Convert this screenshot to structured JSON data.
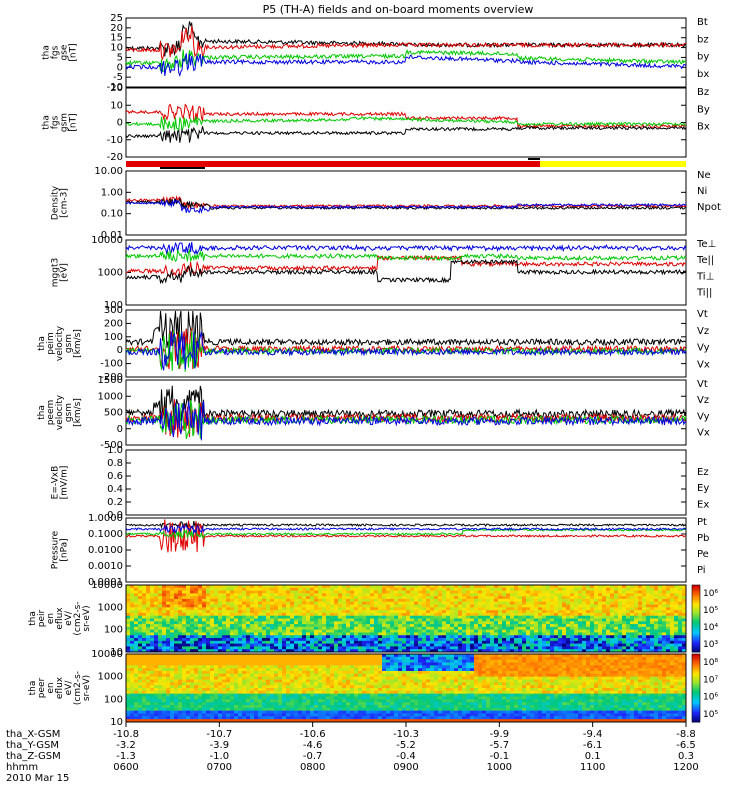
{
  "title": "P5 (TH-A) fields and on-board moments overview",
  "colors": {
    "black": "#000000",
    "red": "#e00000",
    "green": "#00c800",
    "blue": "#0000e0",
    "yellow": "#ffff00"
  },
  "chart_data": [
    {
      "type": "line",
      "panel": "fgs-gse",
      "ylabel": [
        "tha",
        "fgs",
        "gse",
        "[nT]"
      ],
      "yticks": [
        "25",
        "20",
        "15",
        "10",
        "5",
        "0",
        "-5",
        "-10"
      ],
      "ylim": [
        -10,
        25
      ],
      "series": [
        {
          "name": "Bt",
          "color": "black"
        },
        {
          "name": "bz",
          "color": "red"
        },
        {
          "name": "by",
          "color": "green"
        },
        {
          "name": "bx",
          "color": "blue"
        }
      ]
    },
    {
      "type": "line",
      "panel": "fgs-gsm",
      "ylabel": [
        "tha",
        "fgs",
        "gsm",
        "[nT]"
      ],
      "yticks": [
        "20",
        "10",
        "0",
        "-10",
        "-20"
      ],
      "ylim": [
        -25,
        20
      ],
      "series": [
        {
          "name": "Bz",
          "color": "red"
        },
        {
          "name": "By",
          "color": "green"
        },
        {
          "name": "Bx",
          "color": "black"
        }
      ]
    },
    {
      "type": "line",
      "panel": "density",
      "ylabel": [
        "Density",
        "[cm-3]"
      ],
      "yticks": [
        "10.00",
        "1.00",
        "0.10",
        "0.01"
      ],
      "ylim": [
        0.01,
        10
      ],
      "log": true,
      "series": [
        {
          "name": "Ne",
          "color": "red"
        },
        {
          "name": "Ni",
          "color": "black"
        },
        {
          "name": "Npot",
          "color": "blue"
        }
      ]
    },
    {
      "type": "line",
      "panel": "temperature",
      "ylabel": [
        "mggt3",
        "[eV]"
      ],
      "yticks": [
        "10000",
        "1000",
        "100"
      ],
      "ylim": [
        100,
        10000
      ],
      "log": true,
      "series": [
        {
          "name": "Te⊥",
          "color": "red"
        },
        {
          "name": "Te||",
          "color": "black"
        },
        {
          "name": "Ti⊥",
          "color": "blue"
        },
        {
          "name": "Ti||",
          "color": "green"
        }
      ]
    },
    {
      "type": "line",
      "panel": "peim-velocity",
      "ylabel": [
        "tha",
        "peim",
        "velocity",
        "gsm",
        "[km/s]"
      ],
      "yticks": [
        "300",
        "200",
        "100",
        "0",
        "-100",
        "-200"
      ],
      "ylim": [
        -200,
        300
      ],
      "series": [
        {
          "name": "Vt",
          "color": "black"
        },
        {
          "name": "Vz",
          "color": "red"
        },
        {
          "name": "Vy",
          "color": "green"
        },
        {
          "name": "Vx",
          "color": "blue"
        }
      ]
    },
    {
      "type": "line",
      "panel": "peem-velocity",
      "ylabel": [
        "tha",
        "peem",
        "velocity",
        "gsm",
        "[km/s]"
      ],
      "yticks": [
        "1500",
        "1000",
        "500",
        "0",
        "-500"
      ],
      "ylim": [
        -700,
        1500
      ],
      "series": [
        {
          "name": "Vt",
          "color": "black"
        },
        {
          "name": "Vz",
          "color": "red"
        },
        {
          "name": "Vy",
          "color": "green"
        },
        {
          "name": "Vx",
          "color": "blue"
        }
      ]
    },
    {
      "type": "line",
      "panel": "efield",
      "ylabel": [
        "E=-VxB",
        "[mV/m]"
      ],
      "yticks": [
        "1.0",
        "0.8",
        "0.6",
        "0.4",
        "0.2",
        "0.0"
      ],
      "ylim": [
        0,
        1
      ],
      "series": [
        {
          "name": "Ez",
          "color": "red"
        },
        {
          "name": "Ey",
          "color": "green"
        },
        {
          "name": "Ex",
          "color": "blue"
        }
      ]
    },
    {
      "type": "line",
      "panel": "pressure",
      "ylabel": [
        "Pressure",
        "[nPa]"
      ],
      "yticks": [
        "1.0000",
        "0.1000",
        "0.0100",
        "0.0010",
        "0.0001"
      ],
      "ylim": [
        0.0001,
        1
      ],
      "log": true,
      "series": [
        {
          "name": "Pt",
          "color": "black"
        },
        {
          "name": "Pb",
          "color": "red"
        },
        {
          "name": "Pe",
          "color": "green"
        },
        {
          "name": "Pi",
          "color": "blue"
        }
      ]
    },
    {
      "type": "heatmap",
      "panel": "peir-efux",
      "ylabel": [
        "tha",
        "peir",
        "en",
        "eflux",
        "eV/",
        "(cm2-s-",
        "sr-eV)"
      ],
      "yticks": [
        "10000",
        "1000",
        "100",
        "10"
      ],
      "ylim": [
        10,
        20000
      ],
      "log": true,
      "colorbar_ticks": [
        "10⁶",
        "10⁵",
        "10⁴",
        "10³"
      ]
    },
    {
      "type": "heatmap",
      "panel": "peer-efux",
      "ylabel": [
        "tha",
        "peer",
        "en",
        "eflux",
        "eV/",
        "(cm2-s-",
        "sr-eV)"
      ],
      "yticks": [
        "10000",
        "1000",
        "100",
        "10"
      ],
      "ylim": [
        10,
        20000
      ],
      "log": true,
      "colorbar_ticks": [
        "10⁸",
        "10⁷",
        "10⁶",
        "10⁵"
      ]
    }
  ],
  "xaxis": {
    "rows": [
      {
        "label": "tha_X-GSM",
        "values": [
          "-10.8",
          "-10.7",
          "-10.6",
          "-10.3",
          "-9.9",
          "-9.4",
          "-8.8"
        ]
      },
      {
        "label": "tha_Y-GSM",
        "values": [
          "-3.2",
          "-3.9",
          "-4.6",
          "-5.2",
          "-5.7",
          "-6.1",
          "-6.5"
        ]
      },
      {
        "label": "tha_Z-GSM",
        "values": [
          "-1.3",
          "-1.0",
          "-0.7",
          "-0.4",
          "-0.1",
          "0.1",
          "0.3"
        ]
      },
      {
        "label": "hhmm",
        "values": [
          "0600",
          "0700",
          "0800",
          "0900",
          "1000",
          "1100",
          "1200"
        ]
      }
    ],
    "date": "2010 Mar 15"
  }
}
